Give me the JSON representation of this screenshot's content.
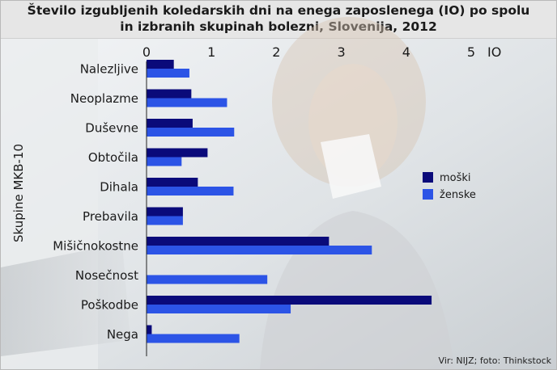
{
  "chart_data": {
    "type": "bar",
    "orientation": "horizontal",
    "title": "Število izgubljenih koledarskih dni na enega zaposlenega (IO) po spolu in izbranih skupinah bolezni, Slovenija, 2012",
    "title_lines": [
      "Število izgubljenih koledarskih dni na enega zaposlenega (IO) po spolu",
      "in izbranih skupinah bolezni, Slovenija, 2012"
    ],
    "xlabel": "IO",
    "ylabel": "Skupine MKB-10",
    "xlim": [
      0,
      5
    ],
    "ticks": [
      "0",
      "1",
      "2",
      "3",
      "4",
      "5"
    ],
    "categories": [
      "Nalezljive",
      "Neoplazme",
      "Duševne",
      "Obtočila",
      "Dihala",
      "Prebavila",
      "Mišičnokostne",
      "Nosečnost",
      "Poškodbe",
      "Nega"
    ],
    "series": [
      {
        "name": "moški",
        "color": "#0a0a7a",
        "values": [
          0.42,
          0.69,
          0.71,
          0.94,
          0.79,
          0.56,
          2.81,
          0.0,
          4.39,
          0.08
        ]
      },
      {
        "name": "ženske",
        "color": "#2c54e6",
        "values": [
          0.66,
          1.24,
          1.35,
          0.54,
          1.34,
          0.56,
          3.47,
          1.86,
          2.22,
          1.43
        ]
      }
    ],
    "legend_position": "right",
    "grid": false,
    "source": "Vir: NIJZ; foto: Thinkstock"
  }
}
